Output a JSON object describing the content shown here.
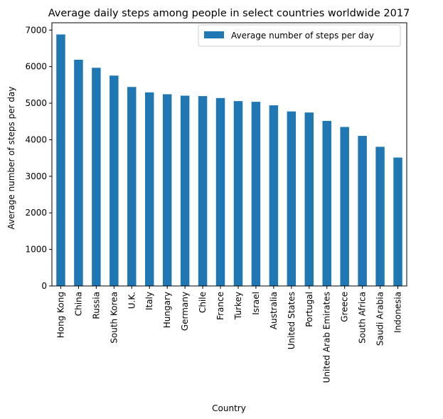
{
  "chart_data": {
    "type": "bar",
    "title": "Average daily steps among people in select countries worldwide 2017",
    "xlabel": "Country",
    "ylabel": "Average number of steps per day",
    "ylim": [
      0,
      7200
    ],
    "yticks": [
      "0",
      "1000",
      "2000",
      "3000",
      "4000",
      "5000",
      "6000",
      "7000"
    ],
    "grid": false,
    "legend_position": "top-right",
    "categories": [
      "Hong Kong",
      "China",
      "Russia",
      "South Korea",
      "U.K.",
      "Italy",
      "Hungary",
      "Germany",
      "Chile",
      "France",
      "Turkey",
      "Israel",
      "Australia",
      "United States",
      "Portugal",
      "United Arab Emirates",
      "Greece",
      "South Africa",
      "Saudi Arabia",
      "Indonesia"
    ],
    "series": [
      {
        "name": "Average number of steps per day",
        "color": "#1f77b4",
        "values": [
          6880,
          6189,
          5969,
          5755,
          5444,
          5296,
          5245,
          5205,
          5194,
          5141,
          5057,
          5038,
          4941,
          4774,
          4745,
          4516,
          4350,
          4105,
          3807,
          3513
        ]
      }
    ]
  }
}
